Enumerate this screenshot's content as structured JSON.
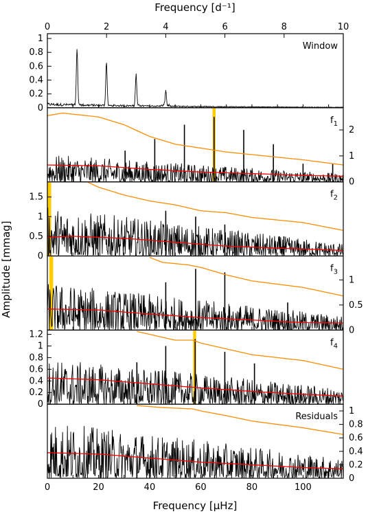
{
  "chart_data": {
    "type": "line",
    "top_axis": {
      "label": "Frequency [d⁻¹]",
      "ticks": [
        "0",
        "2",
        "4",
        "6",
        "8",
        "10"
      ],
      "range": [
        0,
        10
      ]
    },
    "bottom_axis": {
      "label": "Frequency [μHz]",
      "ticks": [
        "0",
        "20",
        "40",
        "60",
        "80",
        "100"
      ],
      "range": [
        0,
        115.74
      ]
    },
    "y_label": "Amplitude [mmag]",
    "colors": {
      "data": "#000000",
      "significance": "#ff8c00",
      "noise": "#ff0000",
      "highlight": "#ffcc00"
    },
    "panels": [
      {
        "label": "Window",
        "ticks_side": "left",
        "ylim": [
          0,
          1.05
        ],
        "ticks": [
          "0",
          "0.2",
          "0.4",
          "0.6",
          "0.8",
          "1"
        ],
        "tick_values": [
          0,
          0.2,
          0.4,
          0.6,
          0.8,
          1
        ],
        "peaks": [
          {
            "f": 11.6,
            "a": 0.84
          },
          {
            "f": 23.1,
            "a": 0.63
          },
          {
            "f": 34.7,
            "a": 0.45
          },
          {
            "f": 46.3,
            "a": 0.22
          }
        ],
        "noise_level": 0.07,
        "noise_decay": 0.0,
        "significance": null,
        "noise_curve": null,
        "highlight": null
      },
      {
        "label": "f1",
        "ticks_side": "right",
        "ylim": [
          0,
          2.8
        ],
        "ticks": [
          "0",
          "1",
          "2"
        ],
        "tick_values": [
          0,
          1,
          2
        ],
        "peaks": [
          {
            "f": 65.2,
            "a": 2.5
          },
          {
            "f": 53.6,
            "a": 2.2
          },
          {
            "f": 76.8,
            "a": 2.0
          },
          {
            "f": 42.0,
            "a": 1.65
          },
          {
            "f": 88.4,
            "a": 1.45
          },
          {
            "f": 30.4,
            "a": 1.2
          },
          {
            "f": 100.0,
            "a": 0.7
          },
          {
            "f": 111.6,
            "a": 0.7
          }
        ],
        "noise_level": 1.05,
        "noise_decay": 0.7,
        "significance": [
          [
            0,
            2.55
          ],
          [
            6,
            2.65
          ],
          [
            20,
            2.5
          ],
          [
            30,
            2.2
          ],
          [
            40,
            1.75
          ],
          [
            50,
            1.45
          ],
          [
            60,
            1.3
          ],
          [
            70,
            1.15
          ],
          [
            80,
            1.05
          ],
          [
            100,
            0.85
          ],
          [
            115.74,
            0.65
          ]
        ],
        "noise_curve": [
          [
            0,
            0.65
          ],
          [
            20,
            0.62
          ],
          [
            40,
            0.48
          ],
          [
            60,
            0.38
          ],
          [
            80,
            0.32
          ],
          [
            100,
            0.25
          ],
          [
            115.74,
            0.22
          ]
        ],
        "highlight": [
          65.2,
          1.2
        ]
      },
      {
        "label": "f2",
        "ticks_side": "left",
        "ylim": [
          0,
          1.85
        ],
        "ticks": [
          "0",
          "0.5",
          "1",
          "1.5"
        ],
        "tick_values": [
          0,
          0.5,
          1,
          1.5
        ],
        "peaks": [
          {
            "f": 46.3,
            "a": 1.15
          },
          {
            "f": 58.0,
            "a": 1.0
          },
          {
            "f": 69.4,
            "a": 0.8
          },
          {
            "f": 92.5,
            "a": 0.5
          }
        ],
        "noise_level": 1.25,
        "noise_decay": 0.75,
        "significance": [
          [
            15,
            1.9
          ],
          [
            20,
            1.75
          ],
          [
            30,
            1.55
          ],
          [
            40,
            1.4
          ],
          [
            50,
            1.3
          ],
          [
            60,
            1.15
          ],
          [
            70,
            1.1
          ],
          [
            80,
            0.98
          ],
          [
            100,
            0.85
          ],
          [
            115.74,
            0.65
          ]
        ],
        "noise_curve": [
          [
            0,
            0.48
          ],
          [
            10,
            0.5
          ],
          [
            30,
            0.45
          ],
          [
            50,
            0.35
          ],
          [
            70,
            0.25
          ],
          [
            90,
            0.2
          ],
          [
            115.74,
            0.14
          ]
        ],
        "highlight": [
          0.5,
          2.0
        ]
      },
      {
        "label": "f3",
        "ticks_side": "right",
        "ylim": [
          0,
          1.45
        ],
        "ticks": [
          "0",
          "0.5",
          "1"
        ],
        "tick_values": [
          0,
          0.5,
          1
        ],
        "peaks": [
          {
            "f": 58.0,
            "a": 1.22
          },
          {
            "f": 69.4,
            "a": 1.15
          },
          {
            "f": 46.3,
            "a": 0.95
          },
          {
            "f": 94.0,
            "a": 0.55
          }
        ],
        "noise_level": 0.95,
        "noise_decay": 0.7,
        "significance": [
          [
            40,
            1.45
          ],
          [
            45,
            1.35
          ],
          [
            55,
            1.3
          ],
          [
            60,
            1.25
          ],
          [
            70,
            1.1
          ],
          [
            80,
            0.98
          ],
          [
            100,
            0.85
          ],
          [
            115.74,
            0.68
          ]
        ],
        "noise_curve": [
          [
            0,
            0.42
          ],
          [
            20,
            0.4
          ],
          [
            40,
            0.32
          ],
          [
            60,
            0.25
          ],
          [
            80,
            0.2
          ],
          [
            100,
            0.15
          ],
          [
            115.74,
            0.14
          ]
        ],
        "highlight": [
          1.5,
          1.5
        ]
      },
      {
        "label": "f4",
        "ticks_side": "left",
        "ylim": [
          0,
          1.25
        ],
        "ticks": [
          "0",
          "0.2",
          "0.4",
          "0.6",
          "0.8",
          "1",
          "1.2"
        ],
        "tick_values": [
          0,
          0.2,
          0.4,
          0.6,
          0.8,
          1,
          1.2
        ],
        "peaks": [
          {
            "f": 46.3,
            "a": 1.0
          },
          {
            "f": 57.8,
            "a": 1.12
          },
          {
            "f": 69.4,
            "a": 0.9
          },
          {
            "f": 81.0,
            "a": 0.7
          },
          {
            "f": 35.0,
            "a": 0.72
          }
        ],
        "noise_level": 0.78,
        "noise_decay": 0.65,
        "significance": [
          [
            35,
            1.25
          ],
          [
            40,
            1.2
          ],
          [
            50,
            1.1
          ],
          [
            57,
            1.1
          ],
          [
            60,
            1.05
          ],
          [
            70,
            0.95
          ],
          [
            80,
            0.85
          ],
          [
            100,
            0.75
          ],
          [
            115.74,
            0.6
          ]
        ],
        "noise_curve": [
          [
            0,
            0.45
          ],
          [
            20,
            0.42
          ],
          [
            40,
            0.35
          ],
          [
            60,
            0.28
          ],
          [
            80,
            0.22
          ],
          [
            100,
            0.17
          ],
          [
            115.74,
            0.14
          ]
        ],
        "highlight": [
          57.6,
          1.2
        ]
      },
      {
        "label": "Residuals",
        "ticks_side": "right",
        "ylim": [
          0,
          1.08
        ],
        "ticks": [
          "0",
          "0.2",
          "0.4",
          "0.6",
          "0.8",
          "1"
        ],
        "tick_values": [
          0,
          0.2,
          0.4,
          0.6,
          0.8,
          1
        ],
        "peaks": [],
        "noise_level": 0.85,
        "noise_decay": 0.65,
        "significance": [
          [
            35,
            1.08
          ],
          [
            45,
            1.05
          ],
          [
            57,
            1.03
          ],
          [
            60,
            1.0
          ],
          [
            70,
            0.93
          ],
          [
            80,
            0.85
          ],
          [
            100,
            0.75
          ],
          [
            115.74,
            0.65
          ]
        ],
        "noise_curve": [
          [
            0,
            0.38
          ],
          [
            20,
            0.36
          ],
          [
            40,
            0.3
          ],
          [
            60,
            0.24
          ],
          [
            80,
            0.2
          ],
          [
            100,
            0.16
          ],
          [
            115.74,
            0.14
          ]
        ],
        "highlight": null
      }
    ]
  }
}
